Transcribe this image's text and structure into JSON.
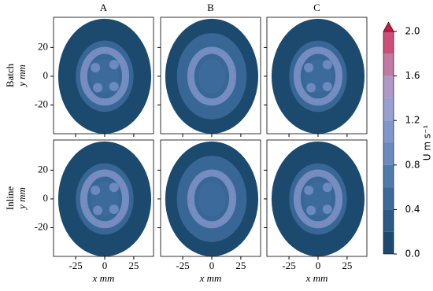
{
  "chart_data": {
    "type": "contour",
    "columns": [
      "A",
      "B",
      "C"
    ],
    "rows": [
      "Batch",
      "Inline"
    ],
    "xlabel": "x mm",
    "ylabel": "y mm",
    "xlim": [
      -44,
      42
    ],
    "ylim": [
      -40,
      41
    ],
    "xticks": [
      -25,
      0,
      25
    ],
    "yticks": [
      -20,
      0,
      20
    ],
    "colorbar": {
      "label": "U m s⁻¹",
      "lim": [
        0,
        2.0
      ],
      "ticks": [
        {
          "value": 0,
          "label": "0.0"
        },
        0.4,
        0.8,
        1.2,
        1.6,
        {
          "value": 2.0,
          "label": "2.0"
        }
      ],
      "colors": [
        "#1c4a6f",
        "#2a5a86",
        "#3c6a9a",
        "#5079ad",
        "#6a8ac0",
        "#8197cc",
        "#9a9fd2",
        "#ae98c6",
        "#c07aa4",
        "#cb4f78"
      ],
      "extend_color": "#c71b45"
    }
  }
}
